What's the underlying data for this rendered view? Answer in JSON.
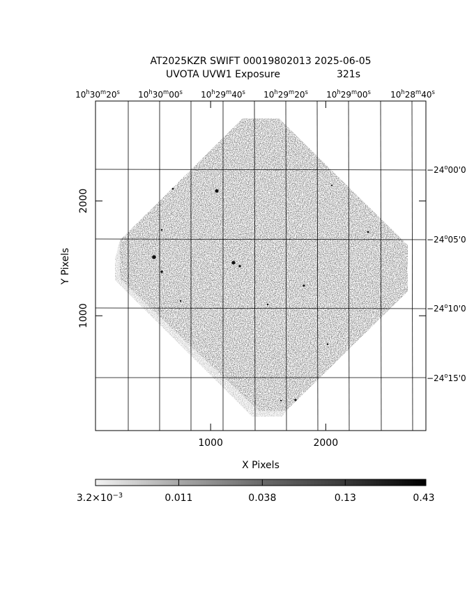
{
  "title": "AT2025KZR SWIFT 00019802013 2025-06-05",
  "subtitle": "UVOTA UVW1 Exposure",
  "exposure": "321s",
  "x_axis": {
    "label": "X Pixels",
    "lim": [
      0,
      2870
    ],
    "ticks": [
      1000,
      2000
    ]
  },
  "y_axis": {
    "label": "Y Pixels",
    "lim": [
      0,
      2870
    ],
    "ticks": [
      1000,
      2000
    ]
  },
  "ra_labels": [
    [
      {
        "text": "10",
        "sup": "h"
      },
      {
        "text": "30",
        "sup": "m"
      },
      {
        "text": "20",
        "sup": "s"
      }
    ],
    [
      {
        "text": "10",
        "sup": "h"
      },
      {
        "text": "30",
        "sup": "m"
      },
      {
        "text": "00",
        "sup": "s"
      }
    ],
    [
      {
        "text": "10",
        "sup": "h"
      },
      {
        "text": "29",
        "sup": "m"
      },
      {
        "text": "40",
        "sup": "s"
      }
    ],
    [
      {
        "text": "10",
        "sup": "h"
      },
      {
        "text": "29",
        "sup": "m"
      },
      {
        "text": "20",
        "sup": "s"
      }
    ],
    [
      {
        "text": "10",
        "sup": "h"
      },
      {
        "text": "29",
        "sup": "m"
      },
      {
        "text": "00",
        "sup": "s"
      }
    ],
    [
      {
        "text": "10",
        "sup": "h"
      },
      {
        "text": "28",
        "sup": "m"
      },
      {
        "text": "40",
        "sup": "s"
      }
    ]
  ],
  "dec_labels": [
    [
      {
        "text": "−24",
        "sup": "o"
      },
      {
        "text": "00'0"
      }
    ],
    [
      {
        "text": "−24",
        "sup": "o"
      },
      {
        "text": "05'0"
      }
    ],
    [
      {
        "text": "−24",
        "sup": "o"
      },
      {
        "text": "10'0"
      }
    ],
    [
      {
        "text": "−24",
        "sup": "o"
      },
      {
        "text": "15'0"
      }
    ]
  ],
  "colorbar": {
    "scale": "log",
    "lim": [
      0.0032,
      0.43
    ],
    "ticks": [
      {
        "value": 0.0032,
        "label": [
          {
            "text": "3.2×10",
            "sup": "−3"
          }
        ]
      },
      0.011,
      0.038,
      0.13,
      0.43
    ]
  }
}
